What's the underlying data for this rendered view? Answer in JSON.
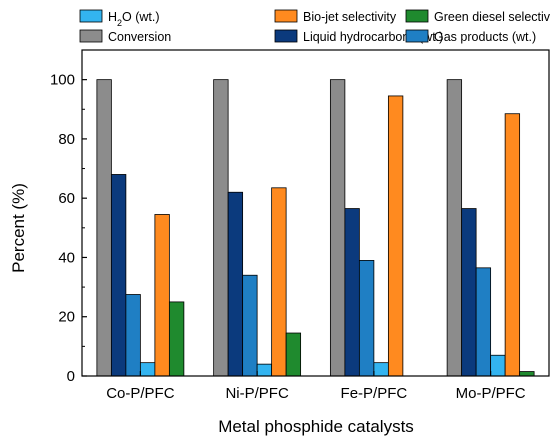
{
  "chart_data": {
    "type": "bar",
    "xlabel": "Metal phosphide catalysts",
    "ylabel": "Percent (%)",
    "ylim": [
      0,
      110
    ],
    "yticks": [
      0,
      20,
      40,
      60,
      80,
      100
    ],
    "grid": false,
    "legend": "top",
    "categories": [
      "Co-P/PFC",
      "Ni-P/PFC",
      "Fe-P/PFC",
      "Mo-P/PFC"
    ],
    "series": [
      {
        "name": "Conversion",
        "color": "#8c8c8c",
        "values": [
          100,
          100,
          100,
          100
        ]
      },
      {
        "name": "Liquid hydrocarbons (wt.)",
        "color": "#0b3a7d",
        "values": [
          68,
          62,
          56.5,
          56.5
        ]
      },
      {
        "name": "Gas products (wt.)",
        "color": "#1f7fc4",
        "values": [
          27.5,
          34,
          39,
          36.5
        ]
      },
      {
        "name": "H2O (wt.)",
        "color": "#33b4f0",
        "values": [
          4.5,
          4,
          4.5,
          7
        ]
      },
      {
        "name": "Bio-jet selectivity",
        "color": "#ff8a1f",
        "values": [
          54.5,
          63.5,
          94.5,
          88.5
        ]
      },
      {
        "name": "Green diesel selectivity",
        "color": "#1f8a2e",
        "values": [
          25,
          14.5,
          0,
          1.5
        ]
      }
    ],
    "legend_order": [
      "H2O (wt.)",
      "Bio-jet selectivity",
      "Green diesel selectivity",
      "Conversion",
      "Liquid hydrocarbons (wt.)",
      "Gas products (wt.)"
    ]
  }
}
